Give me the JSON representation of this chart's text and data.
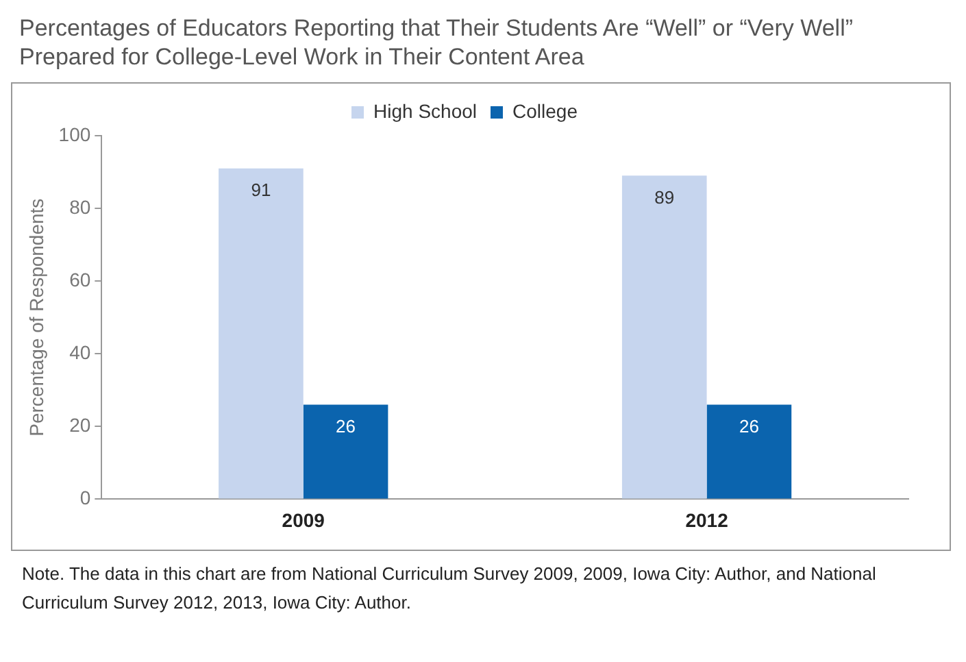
{
  "chart_data": {
    "type": "bar",
    "title": "Percentages of Educators Reporting that Their Students Are “Well” or “Very Well” Prepared for College-Level Work in Their Content Area",
    "ylabel": "Percentage of Respondents",
    "categories": [
      "2009",
      "2012"
    ],
    "series": [
      {
        "name": "High School",
        "color": "#c6d5ee",
        "values": [
          91,
          89
        ]
      },
      {
        "name": "College",
        "color": "#0b64ae",
        "values": [
          26,
          26
        ]
      }
    ],
    "ylim": [
      0,
      100
    ],
    "yticks": [
      0,
      20,
      40,
      60,
      80,
      100
    ],
    "grid": false,
    "legend": "top",
    "data_labels": true,
    "annotations": [
      "Note. The data in this chart are from National Curriculum Survey 2009, 2009, Iowa City: Author, and National Curriculum Survey 2012, 2013, Iowa City: Author."
    ]
  }
}
